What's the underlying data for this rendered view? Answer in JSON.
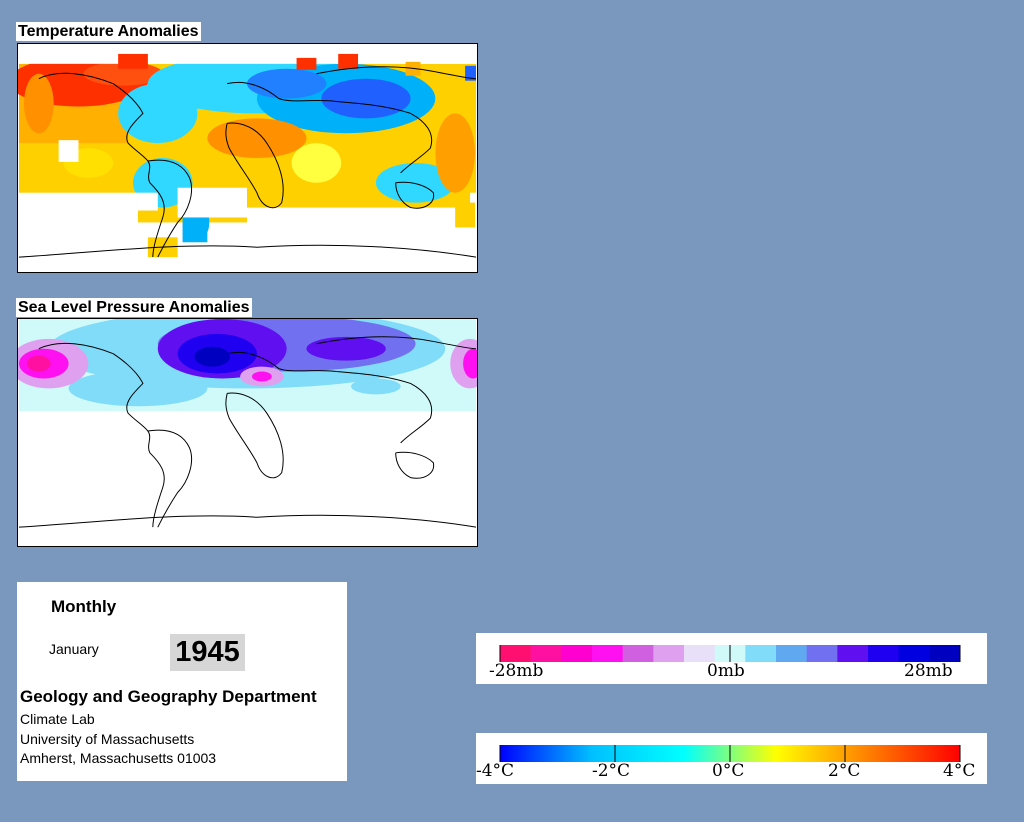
{
  "panels": {
    "temperature_title": "Temperature Anomalies",
    "pressure_title": "Sea Level Pressure Anomalies"
  },
  "info": {
    "period": "Monthly",
    "month": "January",
    "year": "1945",
    "department": "Geology and Geography Department",
    "lab": "Climate Lab",
    "university": "University of Massachusetts",
    "address": "Amherst, Massachusetts 01003"
  },
  "pressure_legend": {
    "labels": [
      "-28mb",
      "0mb",
      "28mb"
    ],
    "colors": [
      "#ff1070",
      "#ff10a0",
      "#ff00d0",
      "#ff10f0",
      "#d060e0",
      "#e0a0f0",
      "#e8e0f8",
      "#d0fafa",
      "#80dcf8",
      "#60a8f0",
      "#7070f0",
      "#6010f0",
      "#2000f0",
      "#0000e0",
      "#0000c0"
    ]
  },
  "temperature_legend": {
    "labels": [
      "-4°C",
      "-2°C",
      "0°C",
      "2°C",
      "4°C"
    ],
    "gradient": [
      "#0000ff",
      "#00c0ff",
      "#00ffff",
      "#ffff00",
      "#ff8000",
      "#ff0000"
    ]
  },
  "colors": {
    "background": "#7a97be",
    "warm": "#ff4000",
    "cool": "#0060ff",
    "high_pressure": "#ff20c0",
    "low_pressure": "#3000e0"
  }
}
